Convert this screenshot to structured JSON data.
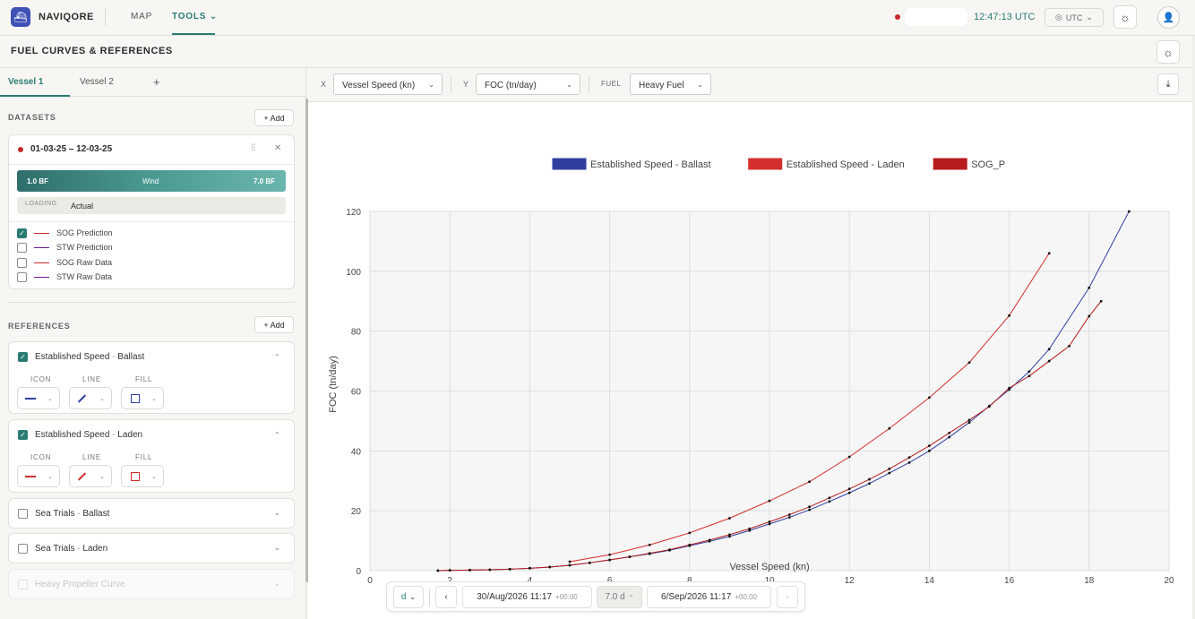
{
  "app": {
    "name": "NAVIQORE",
    "logo_icon": "ship-logo-icon"
  },
  "nav": {
    "map": "MAP",
    "tools": "TOOLS",
    "tools_chevron": "⌄"
  },
  "header": {
    "clock": "12:47:13 UTC",
    "timezone": "UTC",
    "theme_icon": "sun-icon",
    "user_icon": "user-icon"
  },
  "page": {
    "title": "FUEL CURVES & REFERENCES"
  },
  "tabs": {
    "vessel1": "Vessel 1",
    "vessel2": "Vessel 2",
    "add": "+"
  },
  "datasets": {
    "title": "DATASETS",
    "add_label": "+ Add",
    "item": {
      "range": "01-03-25 – 12-03-25",
      "wind_min": "1.0 BF",
      "wind_label": "Wind",
      "wind_max": "7.0 BF",
      "loading_label": "LOADING",
      "loading_value": "Actual",
      "options": [
        {
          "label": "SOG Prediction",
          "checked": true,
          "color": "#c62828"
        },
        {
          "label": "STW Prediction",
          "checked": false,
          "color": "#6a1b9a"
        },
        {
          "label": "SOG Raw Data",
          "checked": false,
          "color": "#c62828"
        },
        {
          "label": "STW Raw Data",
          "checked": false,
          "color": "#6a1b9a"
        }
      ]
    }
  },
  "references": {
    "title": "REFERENCES",
    "add_label": "+ Add",
    "col_icon": "ICON",
    "col_line": "LINE",
    "col_fill": "FILL",
    "items": [
      {
        "name": "Established Speed",
        "variant": "Ballast",
        "checked": true,
        "expanded": true,
        "color": "#303f9f"
      },
      {
        "name": "Established Speed",
        "variant": "Laden",
        "checked": true,
        "expanded": true,
        "color": "#d32f2f"
      },
      {
        "name": "Sea Trials",
        "variant": "Ballast",
        "checked": false,
        "expanded": false
      },
      {
        "name": "Sea Trials",
        "variant": "Laden",
        "checked": false,
        "expanded": false
      },
      {
        "name": "Heavy Propeller Curve",
        "variant": "",
        "checked": false,
        "expanded": false,
        "disabled": true
      }
    ]
  },
  "toolbar": {
    "x_label": "X",
    "x_value": "Vessel Speed (kn)",
    "y_label": "Y",
    "y_value": "FOC (tn/day)",
    "fuel_label": "FUEL",
    "fuel_value": "Heavy Fuel",
    "download_icon": "download-icon"
  },
  "timebar": {
    "unit": "d",
    "start": "30/Aug/2026 11:17",
    "start_tz": "+00:00",
    "span": "7.0 d",
    "end": "6/Sep/2026 11:17",
    "end_tz": "+00:00"
  },
  "chart_data": {
    "type": "line",
    "xlabel": "Vessel Speed (kn)",
    "ylabel": "FOC (tn/day)",
    "xlim": [
      0,
      20
    ],
    "ylim": [
      0,
      120
    ],
    "xticks": [
      0,
      2,
      4,
      6,
      8,
      10,
      12,
      14,
      16,
      18,
      20
    ],
    "yticks": [
      0,
      20,
      40,
      60,
      80,
      100,
      120
    ],
    "grid": true,
    "legend_position": "top-center",
    "series": [
      {
        "name": "Established Speed - Ballast",
        "color": "#303f9f",
        "x": [
          1.7,
          2,
          2.5,
          3,
          3.5,
          4,
          4.5,
          5,
          5.5,
          6,
          6.5,
          7,
          7.5,
          8,
          8.5,
          9,
          9.5,
          10,
          10.5,
          11,
          11.5,
          12,
          12.5,
          13,
          13.5,
          14,
          14.5,
          15,
          15.5,
          16,
          16.5,
          17,
          18,
          19
        ],
        "y": [
          0,
          0.1,
          0.2,
          0.3,
          0.5,
          0.8,
          1.2,
          1.8,
          2.6,
          3.6,
          4.6,
          5.6,
          6.8,
          8.3,
          9.8,
          11.4,
          13.4,
          15.6,
          17.8,
          20.3,
          23.1,
          26,
          29.1,
          32.6,
          36.1,
          40,
          44.6,
          49.5,
          55,
          60.5,
          66.5,
          74,
          94.5,
          120
        ]
      },
      {
        "name": "Established Speed - Laden",
        "color": "#d32f2f",
        "x": [
          5,
          6,
          7,
          8,
          9,
          10,
          11,
          12,
          13,
          14,
          15,
          16,
          17
        ],
        "y": [
          3,
          5.3,
          8.6,
          12.6,
          17.5,
          23.3,
          29.7,
          38,
          47.5,
          57.8,
          69.5,
          85.2,
          106
        ]
      },
      {
        "name": "SOG_P",
        "color": "#b71c1c",
        "x": [
          1.7,
          2,
          2.5,
          3,
          3.5,
          4,
          4.5,
          5,
          5.5,
          6,
          6.5,
          7,
          7.5,
          8,
          8.5,
          9,
          9.5,
          10,
          10.5,
          11,
          11.5,
          12,
          12.5,
          13,
          13.5,
          14,
          14.5,
          15,
          15.5,
          16,
          16.5,
          17,
          17.5,
          18,
          18.3
        ],
        "y": [
          0,
          0.1,
          0.2,
          0.3,
          0.5,
          0.8,
          1.2,
          1.8,
          2.6,
          3.6,
          4.6,
          5.8,
          7,
          8.6,
          10.2,
          12,
          14,
          16.3,
          18.7,
          21.3,
          24.3,
          27.3,
          30.5,
          34,
          37.8,
          41.7,
          46,
          50.3,
          54.8,
          61,
          65,
          70,
          75,
          85,
          90
        ]
      }
    ]
  }
}
